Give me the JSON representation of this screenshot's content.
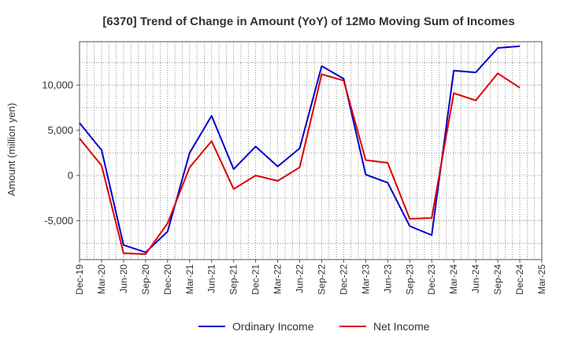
{
  "chart_data": {
    "type": "line",
    "title": "[6370]  Trend of Change in Amount (YoY) of 12Mo Moving Sum of Incomes",
    "ylabel": "Amount (million yen)",
    "xlabel": "",
    "ylim": [
      -9300,
      14800
    ],
    "yticks": [
      -5000,
      0,
      5000,
      10000
    ],
    "ytick_labels": [
      "-5,000",
      "0",
      "5,000",
      "10,000"
    ],
    "x_tick_labels": [
      "Dec-19",
      "Mar-20",
      "Jun-20",
      "Sep-20",
      "Dec-20",
      "Mar-21",
      "Jun-21",
      "Sep-21",
      "Dec-21",
      "Mar-22",
      "Jun-22",
      "Sep-22",
      "Dec-22",
      "Mar-23",
      "Jun-23",
      "Sep-23",
      "Dec-23",
      "Mar-24",
      "Jun-24",
      "Sep-24",
      "Dec-24",
      "Mar-25"
    ],
    "grid": true,
    "legend_position": "bottom-center",
    "series": [
      {
        "name": "Ordinary Income",
        "color": "#0000cc",
        "values": [
          5800,
          2800,
          -7700,
          -8500,
          -6200,
          2500,
          6600,
          700,
          3200,
          1000,
          3000,
          12100,
          10700,
          100,
          -800,
          -5600,
          -6600,
          11600,
          11400,
          14100,
          14300
        ]
      },
      {
        "name": "Net Income",
        "color": "#dd0000",
        "values": [
          4100,
          1100,
          -8600,
          -8700,
          -5300,
          900,
          3800,
          -1500,
          0,
          -600,
          900,
          11200,
          10500,
          1700,
          1400,
          -4800,
          -4700,
          9100,
          8300,
          11300,
          9700
        ]
      }
    ]
  }
}
